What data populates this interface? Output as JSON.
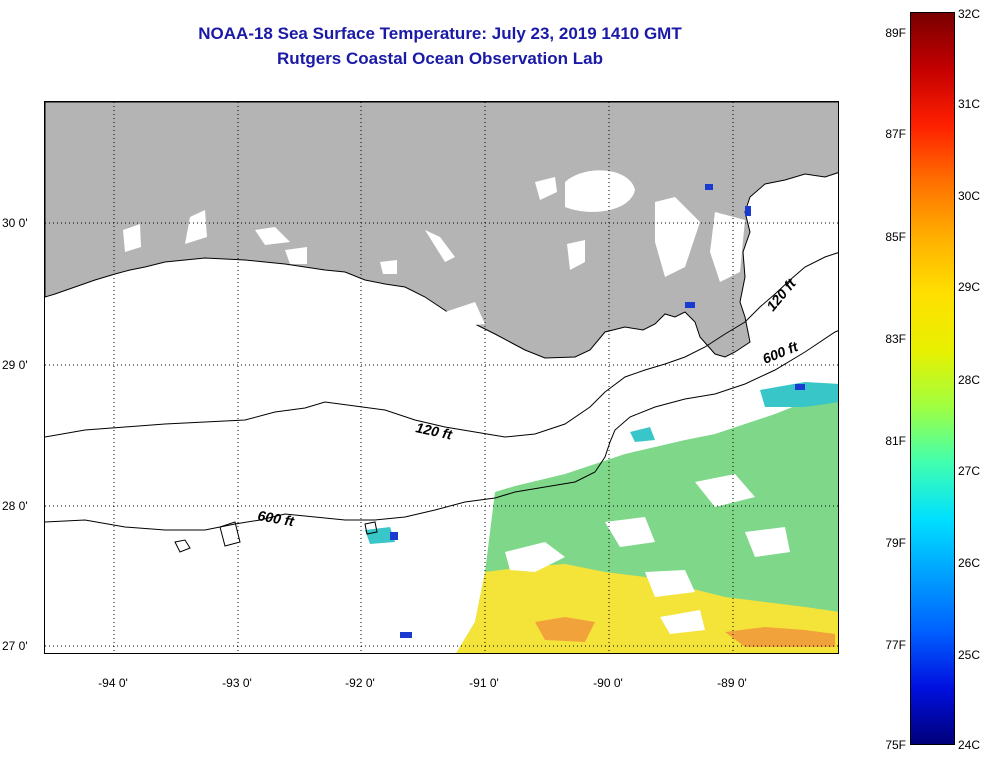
{
  "title": "NOAA-18 Sea Surface Temperature:  July 23, 2019 1410 GMT",
  "subtitle": "Rutgers Coastal Ocean Observation Lab",
  "latitude_labels": [
    "30 0'",
    "29 0'",
    "28 0'",
    "27 0'"
  ],
  "longitude_labels": [
    "-94 0'",
    "-93 0'",
    "-92 0'",
    "-91 0'",
    "-90 0'",
    "-89 0'"
  ],
  "contour_labels": [
    "120 ft",
    "600 ft",
    "120 ft",
    "600 ft"
  ],
  "colorbar": {
    "fahrenheit_labels": [
      "89F",
      "87F",
      "85F",
      "83F",
      "81F",
      "79F",
      "77F",
      "75F"
    ],
    "celsius_labels": [
      "32C",
      "31C",
      "30C",
      "29C",
      "28C",
      "27C",
      "26C",
      "25C",
      "24C"
    ],
    "colors": [
      "#7a0000",
      "#c40000",
      "#ff2000",
      "#ff7000",
      "#ffb000",
      "#ffe000",
      "#e8f000",
      "#a0ff40",
      "#40ffb0",
      "#00e0ff",
      "#00a0ff",
      "#0060ff",
      "#0010e0",
      "#00007a"
    ]
  },
  "colors": {
    "land": "#b4b4b4",
    "title": "#1a1aa6"
  }
}
